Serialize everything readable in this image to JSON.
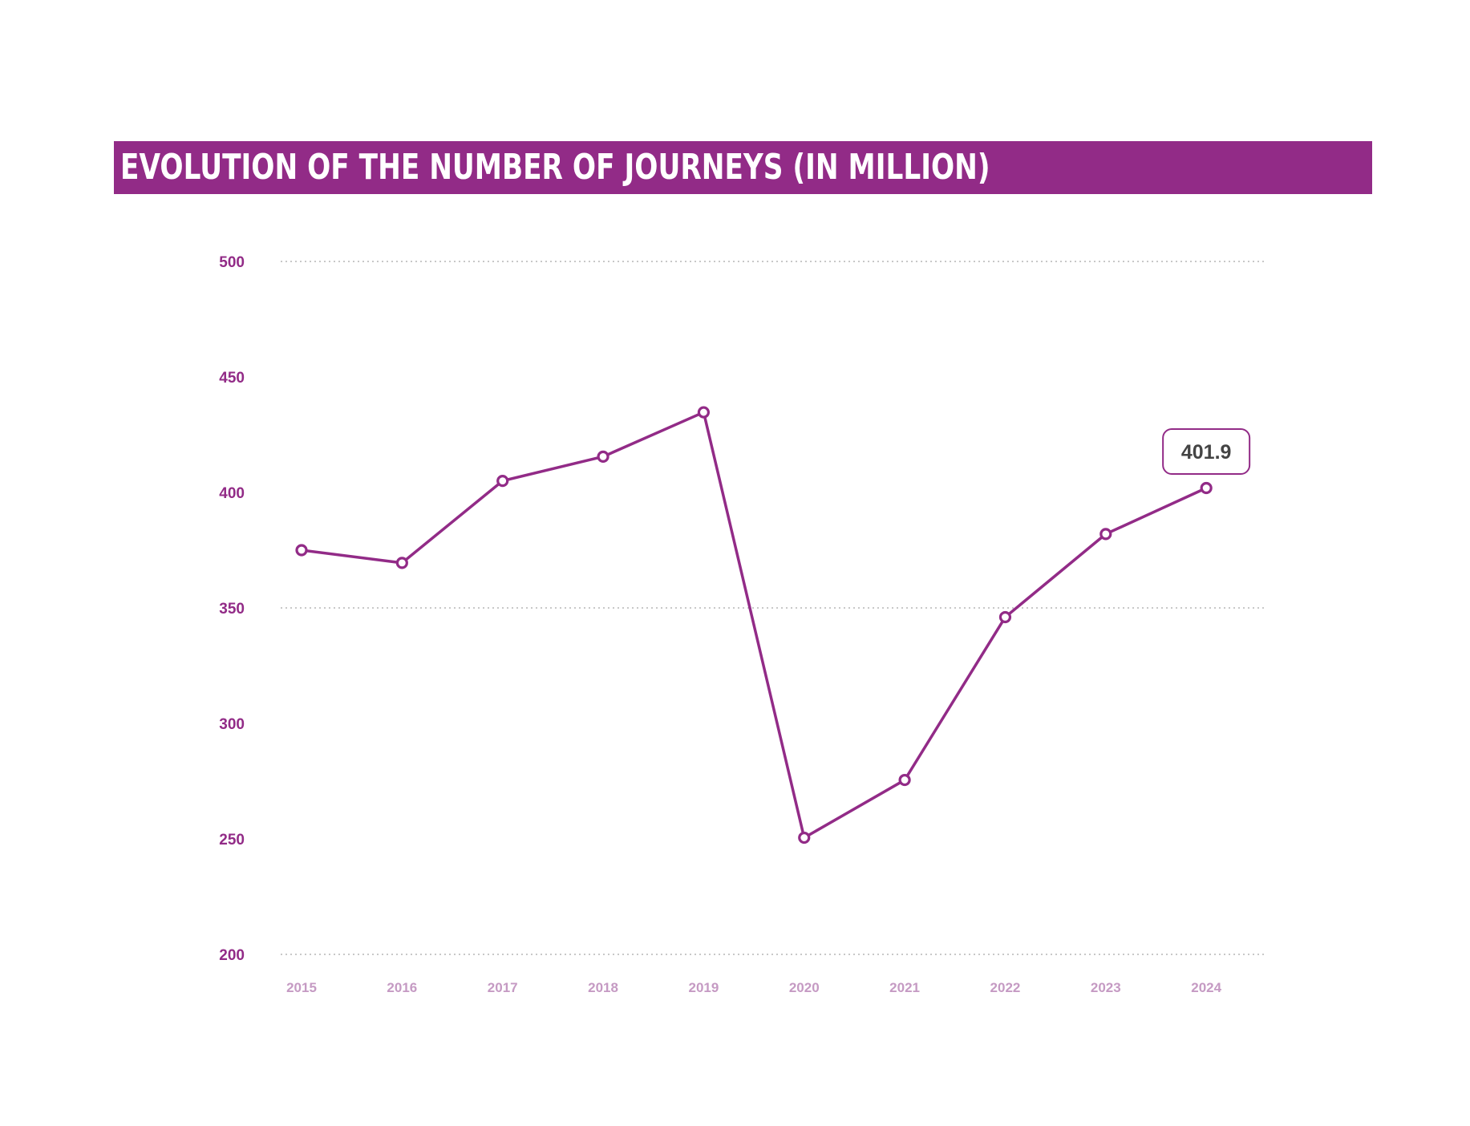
{
  "colors": {
    "accent": "#922b87",
    "x_tick": "#c59ac3",
    "grid": "#b5b5b5",
    "callout_text": "#444444",
    "title_text": "#ffffff"
  },
  "chart_data": {
    "type": "line",
    "title": "EVOLUTION OF THE NUMBER OF JOURNEYS (IN MILLION)",
    "xlabel": "",
    "ylabel": "",
    "categories": [
      "2015",
      "2016",
      "2017",
      "2018",
      "2019",
      "2020",
      "2021",
      "2022",
      "2023",
      "2024"
    ],
    "series": [
      {
        "values": [
          375,
          369.5,
          405,
          415.5,
          434.7,
          250.5,
          275.5,
          346,
          382,
          401.9
        ]
      }
    ],
    "ylim": [
      200,
      500
    ],
    "yticks": [
      "200",
      "250",
      "300",
      "350",
      "400",
      "450",
      "500"
    ],
    "dotted_gridlines_at": [
      200,
      350,
      500
    ],
    "legend": "none",
    "annotation": {
      "category": "2024",
      "text": "401.9"
    }
  }
}
